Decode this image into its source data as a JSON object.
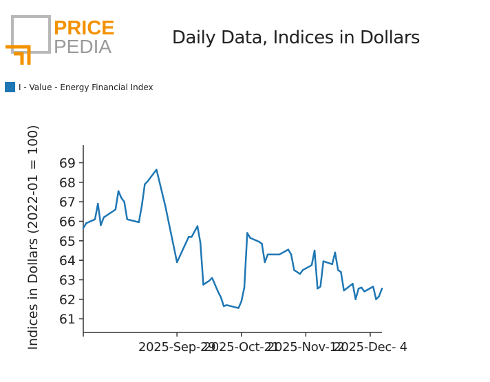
{
  "logo": {
    "word1": "PRICE",
    "word2": "PEDIA",
    "accent": "#f39200",
    "frame": "#b8b8b8"
  },
  "chart_data": {
    "type": "line",
    "title": "Daily Data, Indices in Dollars",
    "ylabel": "Indices in Dollars (2022-01 = 100)",
    "xlabel": "",
    "ylim": [
      60.3,
      69.9
    ],
    "yticks": [
      61,
      62,
      63,
      64,
      65,
      66,
      67,
      68,
      69
    ],
    "xlim": [
      "2025-08-28",
      "2025-12-08"
    ],
    "xticks": [
      {
        "date": "2025-08-28",
        "label": ""
      },
      {
        "date": "2025-09-29",
        "label": "2025-Sep-29"
      },
      {
        "date": "2025-10-21",
        "label": "2025-Oct-21"
      },
      {
        "date": "2025-11-12",
        "label": "2025-Nov-12"
      },
      {
        "date": "2025-12-04",
        "label": "2025-Dec- 4"
      }
    ],
    "legend_position": "top-left",
    "grid": false,
    "series": [
      {
        "name": "I - Value - Energy Financial Index",
        "color": "#1f77b4",
        "points": [
          [
            "2025-08-28",
            65.65
          ],
          [
            "2025-08-29",
            65.9
          ],
          [
            "2025-09-01",
            66.1
          ],
          [
            "2025-09-02",
            66.9
          ],
          [
            "2025-09-03",
            65.8
          ],
          [
            "2025-09-04",
            66.2
          ],
          [
            "2025-09-08",
            66.6
          ],
          [
            "2025-09-09",
            67.55
          ],
          [
            "2025-09-10",
            67.2
          ],
          [
            "2025-09-11",
            67.0
          ],
          [
            "2025-09-12",
            66.1
          ],
          [
            "2025-09-16",
            65.95
          ],
          [
            "2025-09-17",
            66.8
          ],
          [
            "2025-09-18",
            67.9
          ],
          [
            "2025-09-19",
            68.05
          ],
          [
            "2025-09-22",
            68.65
          ],
          [
            "2025-09-25",
            66.8
          ],
          [
            "2025-09-29",
            63.9
          ],
          [
            "2025-10-03",
            65.2
          ],
          [
            "2025-10-04",
            65.2
          ],
          [
            "2025-10-06",
            65.75
          ],
          [
            "2025-10-07",
            64.9
          ],
          [
            "2025-10-08",
            62.75
          ],
          [
            "2025-10-10",
            62.95
          ],
          [
            "2025-10-11",
            63.1
          ],
          [
            "2025-10-13",
            62.4
          ],
          [
            "2025-10-14",
            62.1
          ],
          [
            "2025-10-15",
            61.65
          ],
          [
            "2025-10-16",
            61.7
          ],
          [
            "2025-10-20",
            61.55
          ],
          [
            "2025-10-21",
            61.9
          ],
          [
            "2025-10-22",
            62.6
          ],
          [
            "2025-10-23",
            65.4
          ],
          [
            "2025-10-24",
            65.15
          ],
          [
            "2025-10-27",
            64.95
          ],
          [
            "2025-10-28",
            64.85
          ],
          [
            "2025-10-29",
            63.9
          ],
          [
            "2025-10-30",
            64.3
          ],
          [
            "2025-10-31",
            64.3
          ],
          [
            "2025-11-03",
            64.3
          ],
          [
            "2025-11-06",
            64.55
          ],
          [
            "2025-11-07",
            64.3
          ],
          [
            "2025-11-08",
            63.5
          ],
          [
            "2025-11-10",
            63.3
          ],
          [
            "2025-11-11",
            63.5
          ],
          [
            "2025-11-14",
            63.75
          ],
          [
            "2025-11-15",
            64.5
          ],
          [
            "2025-11-16",
            62.55
          ],
          [
            "2025-11-17",
            62.65
          ],
          [
            "2025-11-18",
            63.95
          ],
          [
            "2025-11-21",
            63.8
          ],
          [
            "2025-11-22",
            64.4
          ],
          [
            "2025-11-23",
            63.5
          ],
          [
            "2025-11-24",
            63.4
          ],
          [
            "2025-11-25",
            62.45
          ],
          [
            "2025-11-28",
            62.8
          ],
          [
            "2025-11-29",
            62.0
          ],
          [
            "2025-11-30",
            62.55
          ],
          [
            "2025-12-01",
            62.6
          ],
          [
            "2025-12-02",
            62.4
          ],
          [
            "2025-12-05",
            62.65
          ],
          [
            "2025-12-06",
            62.0
          ],
          [
            "2025-12-07",
            62.15
          ],
          [
            "2025-12-08",
            62.55
          ]
        ]
      }
    ]
  }
}
